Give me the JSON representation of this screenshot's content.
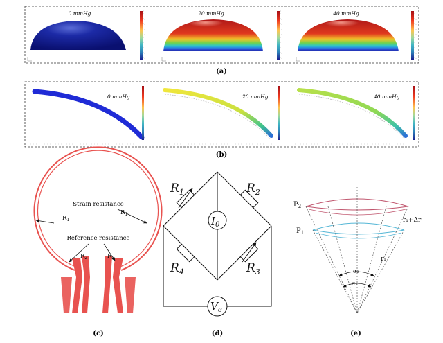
{
  "panel_a": {
    "caption": "(a)",
    "items": [
      {
        "label": "0 mmHg"
      },
      {
        "label": "20 mmHg"
      },
      {
        "label": "40 mmHg"
      }
    ]
  },
  "panel_b": {
    "caption": "(b)",
    "items": [
      {
        "label": "0 mmHg"
      },
      {
        "label": "20 mmHg"
      },
      {
        "label": "40 mmHg"
      }
    ]
  },
  "panel_c": {
    "caption": "(c)",
    "strain_label": "Strain resistance",
    "reference_label": "Reference resistance",
    "r1a": "R",
    "r1a_sub": "1",
    "r1b": "R",
    "r1b_sub": "1",
    "r2a": "R",
    "r2a_sub": "2",
    "r2b": "R",
    "r2b_sub": "2"
  },
  "panel_d": {
    "caption": "(d)",
    "r1": "R",
    "r1_sub": "1",
    "r2": "R",
    "r2_sub": "2",
    "r3": "R",
    "r3_sub": "3",
    "r4": "R",
    "r4_sub": "4",
    "i0": "I",
    "i0_sub": "0",
    "ve": "V",
    "ve_sub": "e"
  },
  "panel_e": {
    "caption": "(e)",
    "p2": "P",
    "p2_sub": "2",
    "p1": "P",
    "p1_sub": "1",
    "r_delta": "r₁+Δr",
    "r1": "r₁",
    "alpha2": "α₂",
    "alpha1": "α₁"
  },
  "colors": {
    "trace": "#e8524f",
    "blue": "#1a1f8f",
    "cyan": "#56b7d6",
    "pink": "#c0566e"
  }
}
